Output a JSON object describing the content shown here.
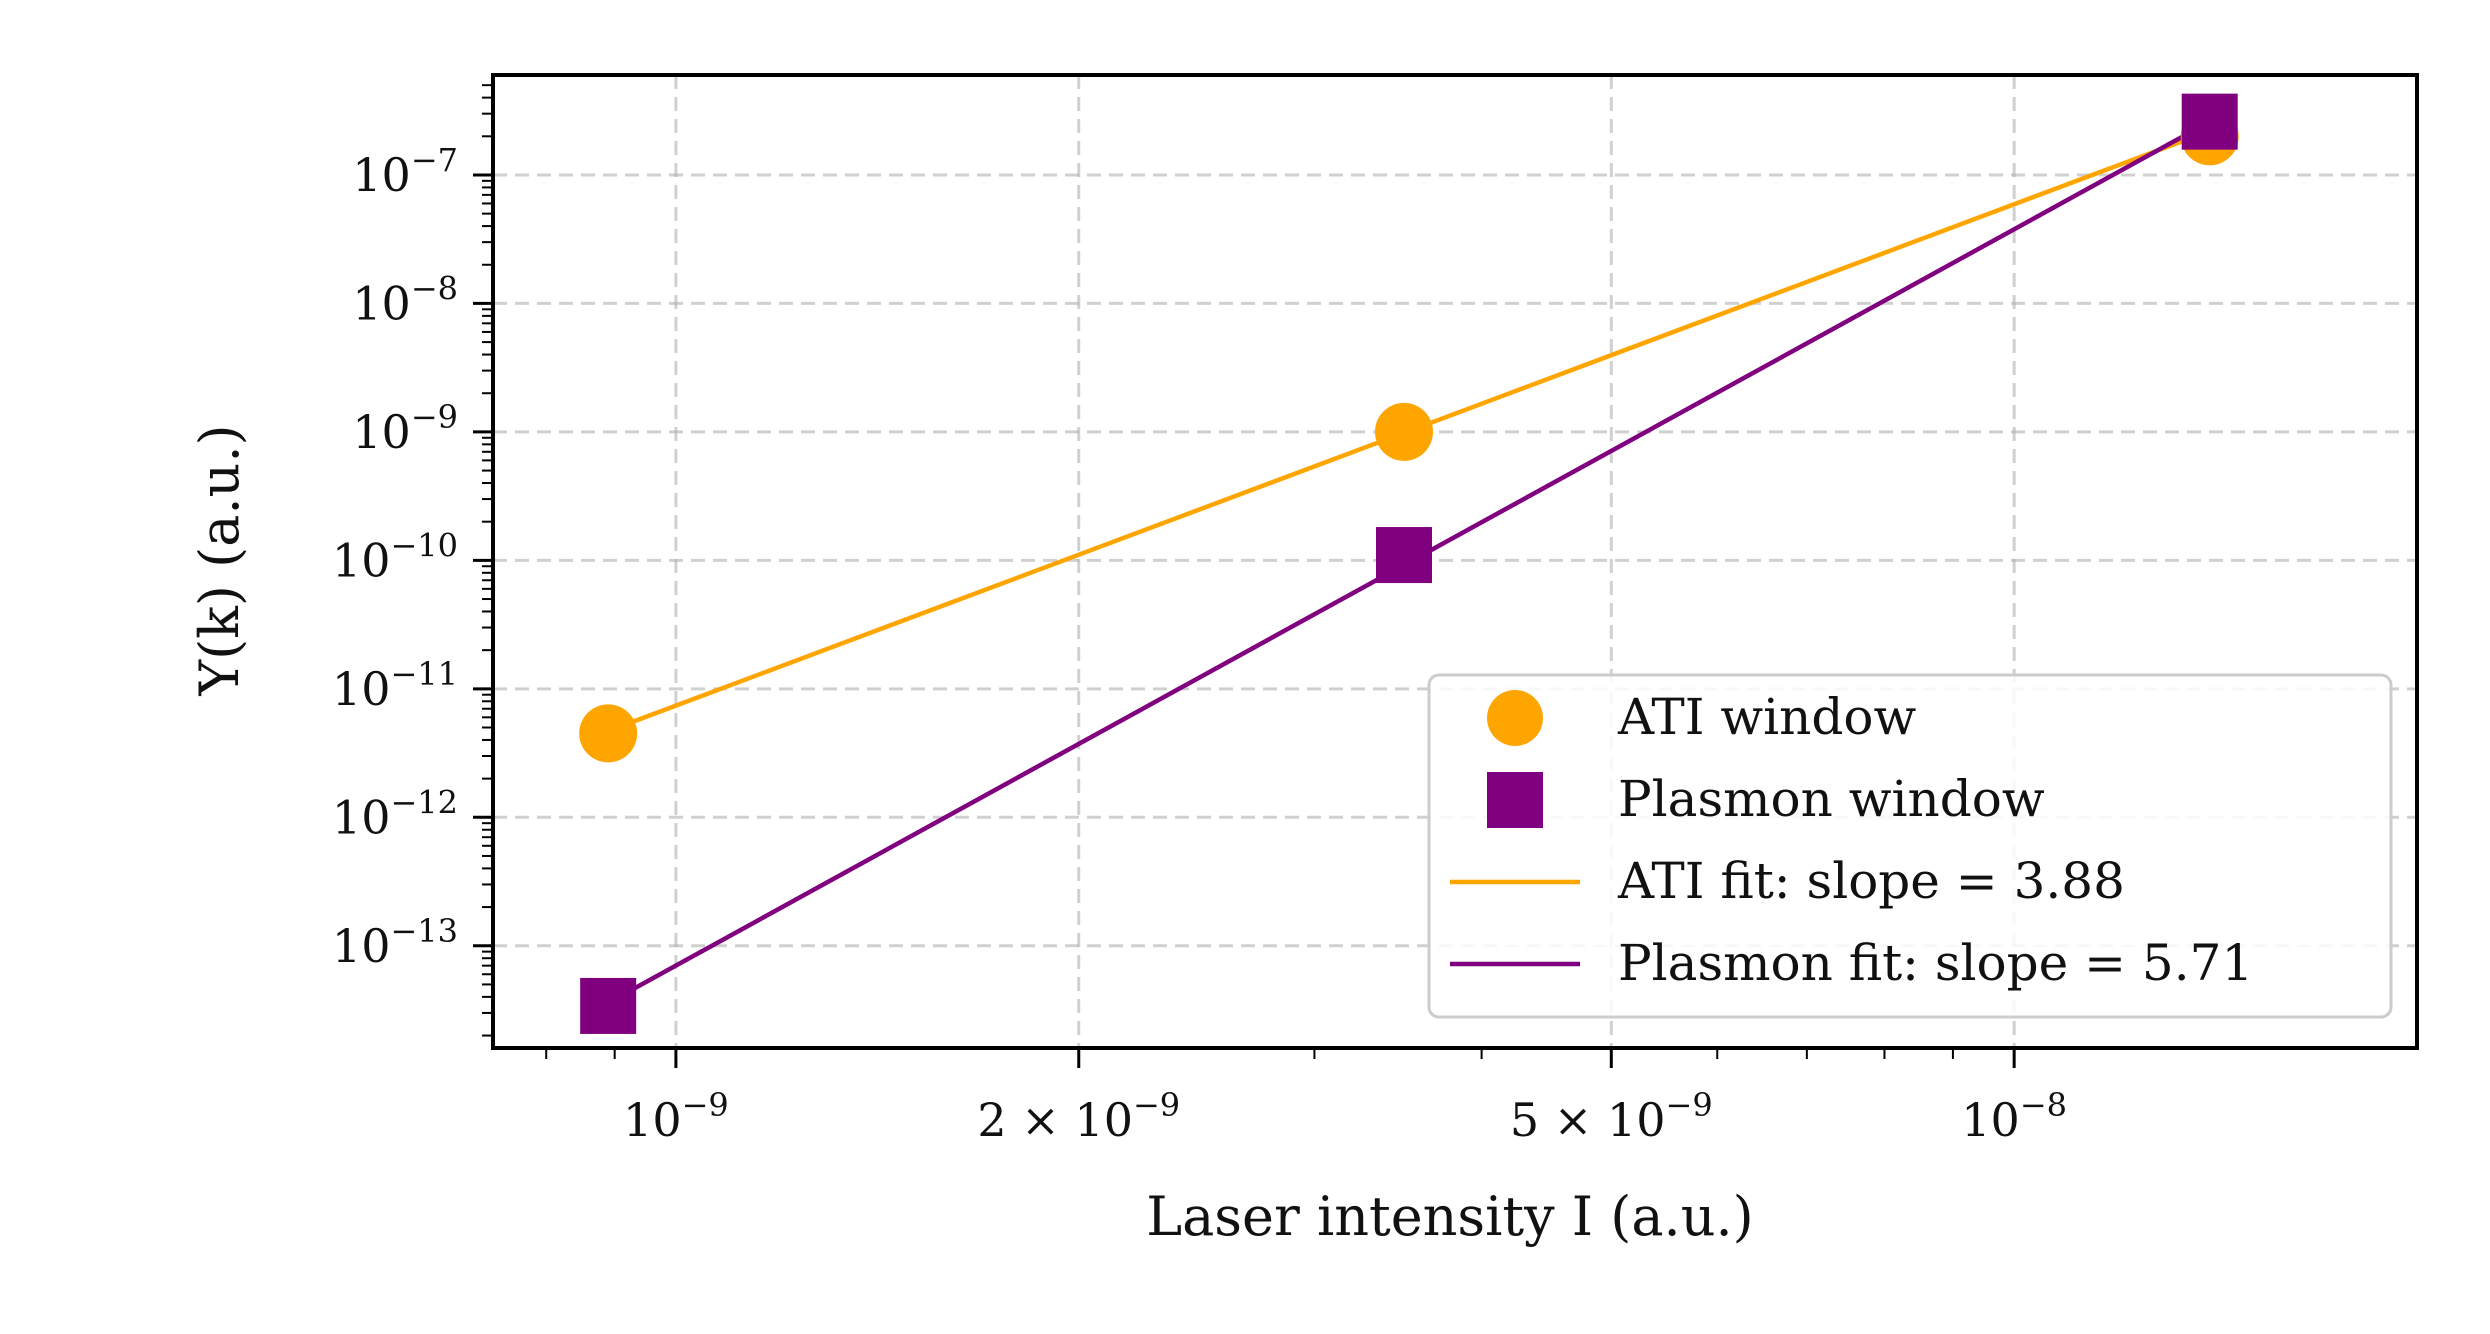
{
  "chart_data": {
    "type": "scatter",
    "scale": {
      "x": "log",
      "y": "log"
    },
    "xlabel": "Laser intensity I (a.u.)",
    "ylabel": "Y(k) (a.u.)",
    "xlim": [
      7.3e-10,
      2e-08
    ],
    "ylim": [
      1.6e-14,
      6e-07
    ],
    "grid": true,
    "x_ticks": [
      {
        "value": 1e-09,
        "label": "10",
        "sup": "−9"
      },
      {
        "value": 2e-09,
        "label": "2 × 10",
        "sup": "−9"
      },
      {
        "value": 5e-09,
        "label": "5 × 10",
        "sup": "−9"
      },
      {
        "value": 1e-08,
        "label": "10",
        "sup": "−8"
      }
    ],
    "y_ticks": [
      {
        "value": 1e-07,
        "label": "10",
        "sup": "−7"
      },
      {
        "value": 1e-08,
        "label": "10",
        "sup": "−8"
      },
      {
        "value": 1e-09,
        "label": "10",
        "sup": "−9"
      },
      {
        "value": 1e-10,
        "label": "10",
        "sup": "−10"
      },
      {
        "value": 1e-11,
        "label": "10",
        "sup": "−11"
      },
      {
        "value": 1e-12,
        "label": "10",
        "sup": "−12"
      },
      {
        "value": 1e-13,
        "label": "10",
        "sup": "−13"
      }
    ],
    "series": [
      {
        "name": "ATI window",
        "kind": "points",
        "marker": "circle",
        "color": "#FFA500",
        "x": [
          8.9e-10,
          3.5e-09,
          1.4e-08
        ],
        "y": [
          4.5e-12,
          1e-09,
          2e-07
        ]
      },
      {
        "name": "Plasmon window",
        "kind": "points",
        "marker": "square",
        "color": "#800080",
        "x": [
          8.9e-10,
          3.5e-09,
          1.4e-08
        ],
        "y": [
          3.4e-14,
          1.1e-10,
          2.6e-07
        ]
      },
      {
        "name": "ATI fit: slope = 3.88",
        "kind": "line",
        "color": "#FFA500",
        "x": [
          8.9e-10,
          1.4e-08
        ],
        "y": [
          4.7e-12,
          2.2e-07
        ]
      },
      {
        "name": "Plasmon fit: slope = 5.71",
        "kind": "line",
        "color": "#800080",
        "x": [
          8.9e-10,
          1.4e-08
        ],
        "y": [
          3.6e-14,
          2.6e-07
        ]
      }
    ],
    "legend": {
      "placement": "lower-right",
      "entries": [
        {
          "label": "ATI window",
          "marker": "circle",
          "color": "#FFA500"
        },
        {
          "label": "Plasmon window",
          "marker": "square",
          "color": "#800080"
        },
        {
          "label": "ATI fit: slope = 3.88",
          "marker": "line",
          "color": "#FFA500"
        },
        {
          "label": "Plasmon fit: slope = 5.71",
          "marker": "line",
          "color": "#800080"
        }
      ]
    }
  }
}
